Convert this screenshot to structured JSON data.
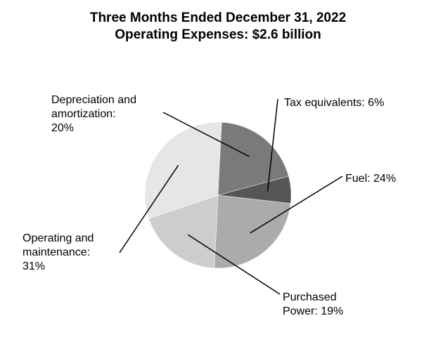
{
  "chart_data": {
    "type": "pie",
    "title": "Three Months Ended December 31, 2022",
    "subtitle": "Operating Expenses: $2.6 billion",
    "slices": [
      {
        "lines": [
          "Tax equivalents: 6%"
        ],
        "value": 6,
        "color": "#555555"
      },
      {
        "lines": [
          "Fuel: 24%"
        ],
        "value": 24,
        "color": "#ababab"
      },
      {
        "lines": [
          "Purchased",
          "Power: 19%"
        ],
        "value": 19,
        "color": "#cdcdcd"
      },
      {
        "lines": [
          "Operating and",
          "maintenance:",
          "31%"
        ],
        "value": 31,
        "color": "#e6e6e6"
      },
      {
        "lines": [
          "Depreciation and",
          "amortization:",
          "20%"
        ],
        "value": 20,
        "color": "#7a7a7a"
      }
    ]
  }
}
